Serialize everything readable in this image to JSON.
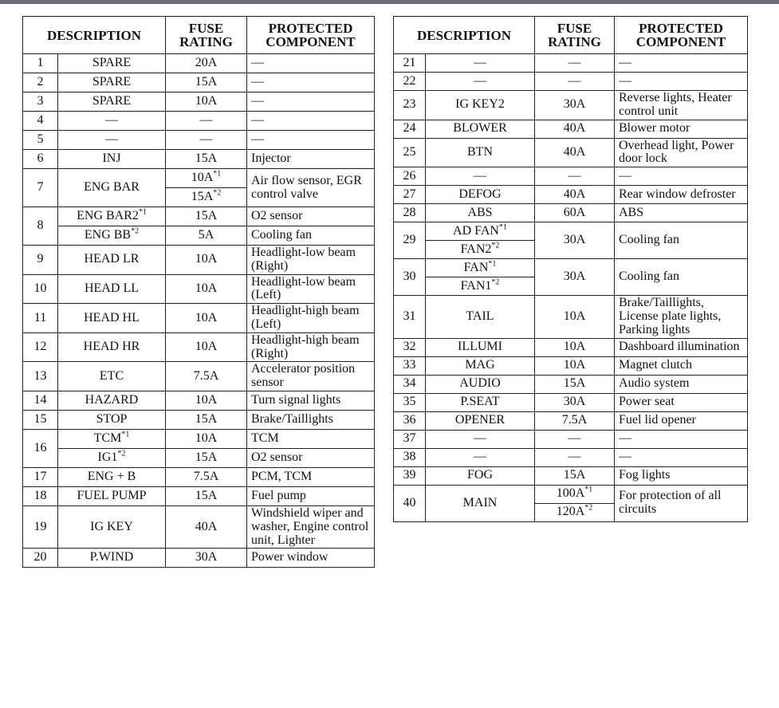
{
  "left": {
    "header": {
      "description": "DESCRIPTION",
      "rating": "FUSE RATING",
      "component": "PROTECTED COMPONENT"
    },
    "rows": [
      {
        "no": "1",
        "desc": [
          "SPARE"
        ],
        "rating": [
          "20A"
        ],
        "comp": [
          "—"
        ]
      },
      {
        "no": "2",
        "desc": [
          "SPARE"
        ],
        "rating": [
          "15A"
        ],
        "comp": [
          "—"
        ]
      },
      {
        "no": "3",
        "desc": [
          "SPARE"
        ],
        "rating": [
          "10A"
        ],
        "comp": [
          "—"
        ]
      },
      {
        "no": "4",
        "desc": [
          "—"
        ],
        "rating": [
          "—"
        ],
        "comp": [
          "—"
        ]
      },
      {
        "no": "5",
        "desc": [
          "—"
        ],
        "rating": [
          "—"
        ],
        "comp": [
          "—"
        ]
      },
      {
        "no": "6",
        "desc": [
          "INJ"
        ],
        "rating": [
          "15A"
        ],
        "comp": [
          "Injector"
        ]
      },
      {
        "no": "7",
        "desc": [
          "ENG BAR"
        ],
        "rating": [
          {
            "t": "10A",
            "s": "*1"
          },
          {
            "t": "15A",
            "s": "*2"
          }
        ],
        "comp": [
          "Air flow sensor, EGR control valve"
        ]
      },
      {
        "no": "8",
        "desc": [
          {
            "t": "ENG BAR2",
            "s": "*1"
          },
          {
            "t": "ENG BB",
            "s": "*2"
          }
        ],
        "rating": [
          "15A",
          "5A"
        ],
        "comp": [
          "O2 sensor",
          "Cooling fan"
        ]
      },
      {
        "no": "9",
        "desc": [
          "HEAD LR"
        ],
        "rating": [
          "10A"
        ],
        "comp": [
          "Headlight-low beam (Right)"
        ]
      },
      {
        "no": "10",
        "desc": [
          "HEAD LL"
        ],
        "rating": [
          "10A"
        ],
        "comp": [
          "Headlight-low beam (Left)"
        ]
      },
      {
        "no": "11",
        "desc": [
          "HEAD HL"
        ],
        "rating": [
          "10A"
        ],
        "comp": [
          "Headlight-high beam (Left)"
        ]
      },
      {
        "no": "12",
        "desc": [
          "HEAD HR"
        ],
        "rating": [
          "10A"
        ],
        "comp": [
          "Headlight-high beam (Right)"
        ]
      },
      {
        "no": "13",
        "desc": [
          "ETC"
        ],
        "rating": [
          "7.5A"
        ],
        "comp": [
          "Accelerator position sensor"
        ]
      },
      {
        "no": "14",
        "desc": [
          "HAZARD"
        ],
        "rating": [
          "10A"
        ],
        "comp": [
          "Turn signal lights"
        ]
      },
      {
        "no": "15",
        "desc": [
          "STOP"
        ],
        "rating": [
          "15A"
        ],
        "comp": [
          "Brake/Taillights"
        ]
      },
      {
        "no": "16",
        "desc": [
          {
            "t": "TCM",
            "s": "*1"
          },
          {
            "t": "IG1",
            "s": "*2"
          }
        ],
        "rating": [
          "10A",
          "15A"
        ],
        "comp": [
          "TCM",
          "O2 sensor"
        ]
      },
      {
        "no": "17",
        "desc": [
          "ENG + B"
        ],
        "rating": [
          "7.5A"
        ],
        "comp": [
          "PCM, TCM"
        ]
      },
      {
        "no": "18",
        "desc": [
          "FUEL PUMP"
        ],
        "rating": [
          "15A"
        ],
        "comp": [
          "Fuel pump"
        ]
      },
      {
        "no": "19",
        "desc": [
          "IG KEY"
        ],
        "rating": [
          "40A"
        ],
        "comp": [
          "Windshield wiper and washer, Engine control unit, Lighter"
        ]
      },
      {
        "no": "20",
        "desc": [
          "P.WIND"
        ],
        "rating": [
          "30A"
        ],
        "comp": [
          "Power window"
        ]
      }
    ]
  },
  "right": {
    "header": {
      "description": "DESCRIPTION",
      "rating": "FUSE RATING",
      "component": "PROTECTED COMPONENT"
    },
    "rows": [
      {
        "no": "21",
        "desc": [
          "—"
        ],
        "rating": [
          "—"
        ],
        "comp": [
          "—"
        ]
      },
      {
        "no": "22",
        "desc": [
          "—"
        ],
        "rating": [
          "—"
        ],
        "comp": [
          "—"
        ]
      },
      {
        "no": "23",
        "desc": [
          "IG KEY2"
        ],
        "rating": [
          "30A"
        ],
        "comp": [
          "Reverse lights, Heater control unit"
        ]
      },
      {
        "no": "24",
        "desc": [
          "BLOWER"
        ],
        "rating": [
          "40A"
        ],
        "comp": [
          "Blower motor"
        ]
      },
      {
        "no": "25",
        "desc": [
          "BTN"
        ],
        "rating": [
          "40A"
        ],
        "comp": [
          "Overhead light, Power door lock"
        ]
      },
      {
        "no": "26",
        "desc": [
          "—"
        ],
        "rating": [
          "—"
        ],
        "comp": [
          "—"
        ]
      },
      {
        "no": "27",
        "desc": [
          "DEFOG"
        ],
        "rating": [
          "40A"
        ],
        "comp": [
          "Rear window defroster"
        ]
      },
      {
        "no": "28",
        "desc": [
          "ABS"
        ],
        "rating": [
          "60A"
        ],
        "comp": [
          "ABS"
        ]
      },
      {
        "no": "29",
        "desc": [
          {
            "t": "AD FAN",
            "s": "*1"
          },
          {
            "t": "FAN2",
            "s": "*2"
          }
        ],
        "rating": [
          "30A"
        ],
        "comp": [
          "Cooling fan"
        ]
      },
      {
        "no": "30",
        "desc": [
          {
            "t": "FAN",
            "s": "*1"
          },
          {
            "t": "FAN1",
            "s": "*2"
          }
        ],
        "rating": [
          "30A"
        ],
        "comp": [
          "Cooling fan"
        ]
      },
      {
        "no": "31",
        "desc": [
          "TAIL"
        ],
        "rating": [
          "10A"
        ],
        "comp": [
          "Brake/Taillights, License plate lights, Parking lights"
        ]
      },
      {
        "no": "32",
        "desc": [
          "ILLUMI"
        ],
        "rating": [
          "10A"
        ],
        "comp": [
          "Dashboard illumination"
        ]
      },
      {
        "no": "33",
        "desc": [
          "MAG"
        ],
        "rating": [
          "10A"
        ],
        "comp": [
          "Magnet clutch"
        ]
      },
      {
        "no": "34",
        "desc": [
          "AUDIO"
        ],
        "rating": [
          "15A"
        ],
        "comp": [
          "Audio system"
        ]
      },
      {
        "no": "35",
        "desc": [
          "P.SEAT"
        ],
        "rating": [
          "30A"
        ],
        "comp": [
          "Power seat"
        ]
      },
      {
        "no": "36",
        "desc": [
          "OPENER"
        ],
        "rating": [
          "7.5A"
        ],
        "comp": [
          "Fuel lid opener"
        ]
      },
      {
        "no": "37",
        "desc": [
          "—"
        ],
        "rating": [
          "—"
        ],
        "comp": [
          "—"
        ]
      },
      {
        "no": "38",
        "desc": [
          "—"
        ],
        "rating": [
          "—"
        ],
        "comp": [
          "—"
        ]
      },
      {
        "no": "39",
        "desc": [
          "FOG"
        ],
        "rating": [
          "15A"
        ],
        "comp": [
          "Fog lights"
        ]
      },
      {
        "no": "40",
        "desc": [
          "MAIN"
        ],
        "rating": [
          {
            "t": "100A",
            "s": "*1"
          },
          {
            "t": "120A",
            "s": "*2"
          }
        ],
        "comp": [
          "For protection of all circuits"
        ]
      }
    ]
  }
}
